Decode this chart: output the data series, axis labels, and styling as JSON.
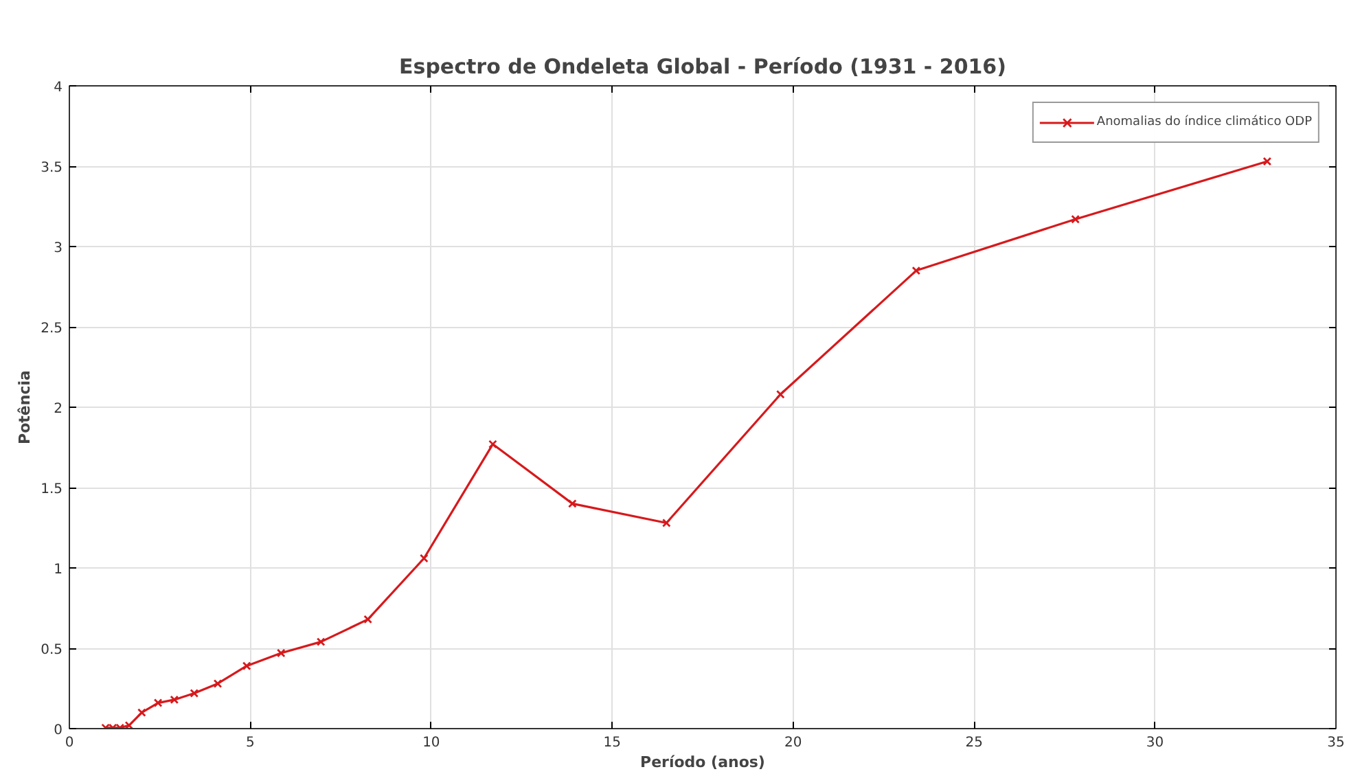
{
  "chart_data": {
    "type": "line",
    "title": "Espectro de Ondeleta Global - Período (1931 - 2016)",
    "xlabel": "Período (anos)",
    "ylabel": "Potência",
    "x": [
      1.0,
      1.2,
      1.4,
      1.65,
      2.0,
      2.45,
      2.9,
      3.45,
      4.1,
      4.9,
      5.85,
      6.95,
      8.25,
      9.8,
      11.7,
      13.9,
      16.5,
      19.65,
      23.4,
      27.8,
      33.1
    ],
    "series": [
      {
        "name": "Anomalias do índice climático ODP",
        "color": "#d7191c",
        "values": [
          0.005,
          0.005,
          0.005,
          0.02,
          0.1,
          0.16,
          0.18,
          0.22,
          0.28,
          0.39,
          0.47,
          0.54,
          0.68,
          1.06,
          1.77,
          1.4,
          1.28,
          2.08,
          2.85,
          3.17,
          3.53
        ]
      }
    ],
    "xlim": [
      0,
      35
    ],
    "xticks": [
      0,
      5,
      10,
      15,
      20,
      25,
      30,
      35
    ],
    "ylim": [
      0,
      4
    ],
    "yticks": [
      0,
      0.5,
      1,
      1.5,
      2,
      2.5,
      3,
      3.5,
      4
    ],
    "grid": true,
    "legend": "top right",
    "marker": "cross",
    "line_style": "solid"
  }
}
